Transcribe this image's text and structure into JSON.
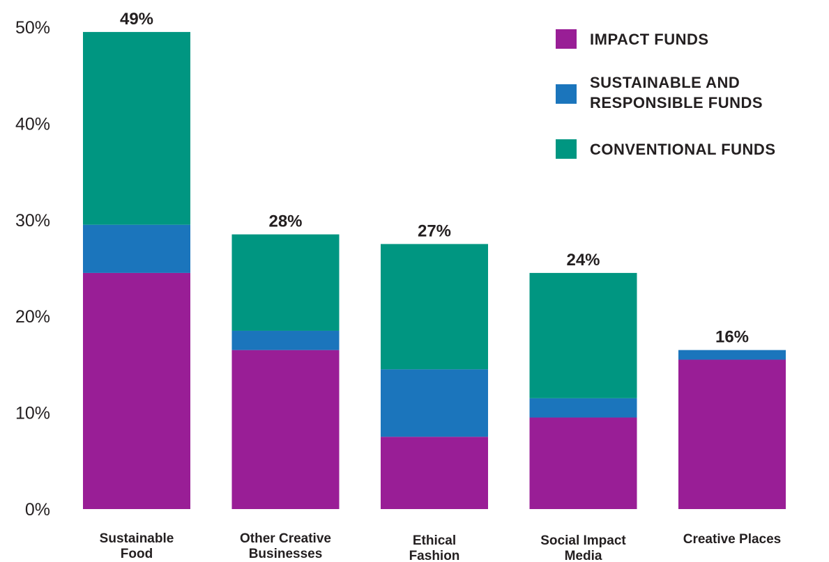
{
  "chart_data": {
    "type": "bar",
    "stacked": true,
    "categories": [
      [
        "Sustainable",
        "Food"
      ],
      [
        "Other Creative",
        "Businesses"
      ],
      [
        "Ethical",
        "Fashion"
      ],
      [
        "Social Impact",
        "Media"
      ],
      [
        "Creative Places"
      ]
    ],
    "series": [
      {
        "name": [
          "IMPACT FUNDS"
        ],
        "color": "#991e96",
        "values": [
          24.5,
          16.5,
          7.5,
          9.5,
          15.5
        ]
      },
      {
        "name": [
          "SUSTAINABLE AND",
          "RESPONSIBLE FUNDS"
        ],
        "color": "#1b75bc",
        "values": [
          5,
          2,
          7,
          2,
          1
        ]
      },
      {
        "name": [
          "CONVENTIONAL FUNDS"
        ],
        "color": "#009681",
        "values": [
          20,
          10,
          13,
          13,
          0
        ]
      }
    ],
    "totals": [
      "49%",
      "28%",
      "27%",
      "24%",
      "16%"
    ],
    "yticks": [
      "0%",
      "10%",
      "20%",
      "30%",
      "40%",
      "50%"
    ],
    "ylim": [
      0,
      50
    ],
    "grid": false,
    "legend_position": "top-right"
  }
}
